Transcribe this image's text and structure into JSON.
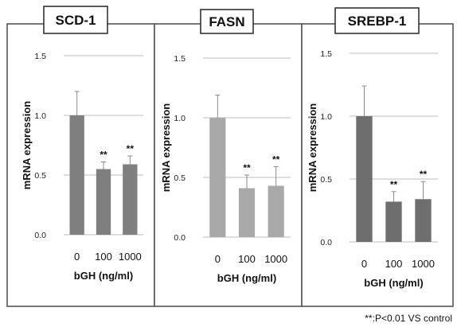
{
  "chart_data": [
    {
      "type": "bar",
      "title": "SCD-1",
      "categories": [
        "0",
        "100",
        "1000"
      ],
      "values": [
        1.0,
        0.55,
        0.59
      ],
      "errors": [
        0.2,
        0.06,
        0.07
      ],
      "significance": [
        "",
        "**",
        "**"
      ],
      "xlabel": "bGH (ng/ml)",
      "ylabel": "mRNA expression",
      "ylim": [
        0,
        1.5
      ],
      "yticks": [
        "0.0",
        "0.5",
        "1.0",
        "1.5"
      ],
      "grid": true,
      "bar_color": "#7f7f7f"
    },
    {
      "type": "bar",
      "title": "FASN",
      "categories": [
        "0",
        "100",
        "1000"
      ],
      "values": [
        1.0,
        0.41,
        0.43
      ],
      "errors": [
        0.19,
        0.11,
        0.16
      ],
      "significance": [
        "",
        "**",
        "**"
      ],
      "xlabel": "bGH (ng/ml)",
      "ylabel": "mRNA expression",
      "ylim": [
        0,
        1.5
      ],
      "yticks": [
        "0.0",
        "0.5",
        "1.0",
        "1.5"
      ],
      "grid": true,
      "bar_color": "#a9a9a9"
    },
    {
      "type": "bar",
      "title": "SREBP-1",
      "categories": [
        "0",
        "100",
        "1000"
      ],
      "values": [
        1.0,
        0.32,
        0.34
      ],
      "errors": [
        0.24,
        0.08,
        0.14
      ],
      "significance": [
        "",
        "**",
        "**"
      ],
      "xlabel": "bGH (ng/ml)",
      "ylabel": "mRNA expression",
      "ylim": [
        0,
        1.5
      ],
      "yticks": [
        "0.0",
        "0.5",
        "1.0",
        "1.5"
      ],
      "grid": true,
      "bar_color": "#6e6e6e"
    }
  ],
  "footnote": "**:P<0.01 VS control"
}
